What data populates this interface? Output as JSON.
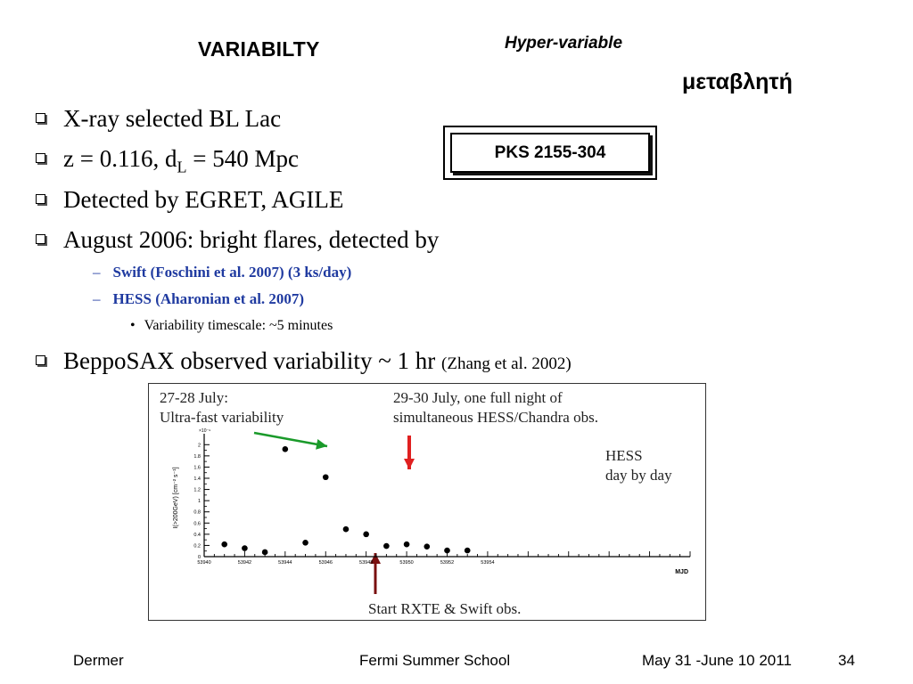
{
  "slide": {
    "title": "VARIABILTY",
    "hyper_label": "Hyper-variable",
    "greek_label": "μεταβλητή",
    "source_box": "PKS 2155-304",
    "bullets": [
      {
        "text": "X-ray selected BL Lac"
      },
      {
        "pre": "z = 0.116, d",
        "sub": "L",
        "post": " = 540 Mpc"
      },
      {
        "text": "Detected by EGRET, AGILE"
      },
      {
        "text": "August 2006:  bright flares, detected by"
      },
      {
        "text": "BeppoSAX observed variability ~ 1 hr ",
        "small": "(Zhang et al. 2002)"
      }
    ],
    "subbullets": [
      {
        "text": "Swift (Foschini et al. 2007)  (3 ks/day)"
      },
      {
        "text": "HESS (Aharonian et al. 2007)"
      }
    ],
    "subsubbullets": [
      {
        "text": "Variability timescale:  ~5 minutes"
      }
    ],
    "bullet_marker_dash": "–",
    "bullet_marker_dot": "•"
  },
  "figure": {
    "annotations": {
      "fast_line1": "27-28 July:",
      "fast_line2": "Ultra-fast variability",
      "night_line1": "29-30 July, one full night of",
      "night_line2": "simultaneous HESS/Chandra obs.",
      "hess_line1": "HESS",
      "hess_line2": "day by day",
      "start": "Start RXTE & Swift  obs."
    },
    "colors": {
      "green_arrow": "#1a9a2a",
      "red_arrow": "#e02020",
      "darkred_arrow": "#7a1010"
    }
  },
  "chart_data": {
    "type": "scatter",
    "title": "",
    "xlabel": "MJD",
    "ylabel": "I(>200GeV) [cm⁻² s⁻¹]",
    "y_multiplier_label": "×10⁻⁹",
    "xlim": [
      53940,
      53964
    ],
    "ylim": [
      0,
      2.1
    ],
    "x_ticks": [
      53940,
      53942,
      53944,
      53946,
      53948,
      53950,
      53952,
      53954
    ],
    "x_tick_labels": [
      "53940",
      "53942",
      "53944",
      "53946",
      "53948",
      "53950",
      "53952",
      "53954"
    ],
    "y_ticks": [
      0,
      0.2,
      0.4,
      0.6,
      0.8,
      1,
      1.2,
      1.4,
      1.6,
      1.8,
      2
    ],
    "y_tick_labels": [
      "0",
      "0.2",
      "0.4",
      "0.6",
      "0.8",
      "1",
      "1.2",
      "1.4",
      "1.6",
      "1.8",
      "2"
    ],
    "series": [
      {
        "x": [
          53941.0,
          53942.0,
          53943.0,
          53944.0,
          53945.0,
          53946.0,
          53947.0,
          53948.0,
          53949.0,
          53950.0,
          53951.0,
          53952.0,
          53953.0
        ],
        "y": [
          0.22,
          0.15,
          0.08,
          1.92,
          0.25,
          1.42,
          0.49,
          0.4,
          0.19,
          0.22,
          0.18,
          0.11,
          0.11
        ]
      }
    ]
  },
  "footer": {
    "author": "Dermer",
    "event": "Fermi Summer School",
    "date": "May 31 -June 10 2011",
    "page": "34"
  }
}
